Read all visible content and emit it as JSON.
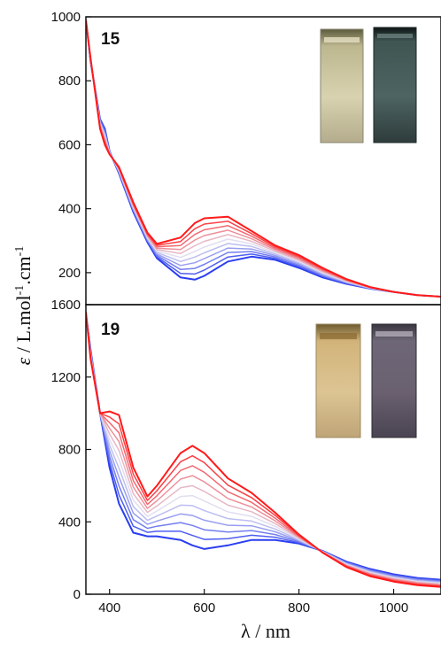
{
  "chart_data": [
    {
      "type": "line",
      "panel_label": "15",
      "xlim": [
        350,
        1100
      ],
      "ylim": [
        100,
        1000
      ],
      "x_ticks": [
        400,
        600,
        800,
        1000
      ],
      "y_ticks": [
        200,
        400,
        600,
        800,
        1000
      ],
      "grid": false,
      "legend": "none",
      "series_count": 11,
      "color_start": "#2a3ef0",
      "color_end": "#ff1a1a",
      "x": [
        350,
        360,
        380,
        390,
        400,
        420,
        450,
        480,
        500,
        550,
        580,
        600,
        650,
        700,
        750,
        800,
        850,
        900,
        950,
        1000,
        1050,
        1100
      ],
      "first_spectrum": [
        990,
        860,
        680,
        650,
        580,
        510,
        390,
        295,
        245,
        185,
        178,
        190,
        235,
        250,
        240,
        215,
        185,
        165,
        150,
        140,
        130,
        125
      ],
      "last_spectrum": [
        990,
        870,
        650,
        600,
        570,
        530,
        420,
        325,
        290,
        310,
        355,
        370,
        375,
        330,
        285,
        255,
        215,
        180,
        155,
        140,
        130,
        125
      ],
      "photos": [
        "cuvette-yellow",
        "cuvette-dark-teal"
      ]
    },
    {
      "type": "line",
      "panel_label": "19",
      "xlim": [
        350,
        1100
      ],
      "ylim": [
        0,
        1600
      ],
      "x_ticks": [
        400,
        600,
        800,
        1000
      ],
      "y_ticks": [
        0,
        400,
        800,
        1200,
        1600
      ],
      "grid": false,
      "legend": "none",
      "series_count": 11,
      "color_start": "#2a3ef0",
      "color_end": "#ff1a1a",
      "x": [
        350,
        360,
        380,
        400,
        420,
        450,
        480,
        500,
        550,
        575,
        600,
        650,
        700,
        750,
        800,
        850,
        900,
        950,
        1000,
        1050,
        1100
      ],
      "first_spectrum": [
        1550,
        1350,
        1000,
        700,
        500,
        340,
        320,
        320,
        300,
        270,
        250,
        270,
        300,
        300,
        280,
        240,
        180,
        140,
        110,
        90,
        80
      ],
      "last_spectrum": [
        1560,
        1300,
        1000,
        1010,
        990,
        700,
        540,
        600,
        780,
        820,
        780,
        640,
        560,
        450,
        330,
        230,
        150,
        100,
        70,
        50,
        40
      ],
      "photos": [
        "cuvette-amber",
        "cuvette-purple-gray"
      ]
    }
  ],
  "axes": {
    "xlabel": "λ / nm",
    "ylabel_parts": [
      "ε",
      " / L.mol",
      "-1",
      ".cm",
      "-1"
    ]
  }
}
